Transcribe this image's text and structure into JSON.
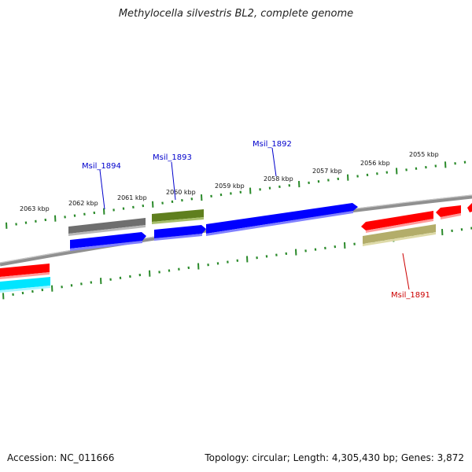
{
  "title": "Methylocella silvestris BL2, complete genome",
  "footer": {
    "accession": "Accession: NC_011666",
    "summary": "Topology: circular; Length: 4,305,430 bp; Genes: 3,872"
  },
  "colors": {
    "ruler_tick": "#2a8a2a",
    "genome_line": "#808080",
    "gene_label_blue": "#0000cc",
    "gene_label_red": "#cc0000",
    "blue_gene": "#0000ff",
    "gray_gene": "#6e6e6e",
    "olive_gene": "#5f7f1e",
    "khaki_gene": "#b3ad6a",
    "red_gene": "#ff0000",
    "cyan_gene": "#00e5ff"
  },
  "ruler_labels": [
    "2063 kbp",
    "2062 kbp",
    "2061 kbp",
    "2060 kbp",
    "2059 kbp",
    "2058 kbp",
    "2057 kbp",
    "2056 kbp",
    "2055 kbp"
  ],
  "gene_labels": [
    {
      "id": "Msil_1894",
      "strand": "forward"
    },
    {
      "id": "Msil_1893",
      "strand": "forward"
    },
    {
      "id": "Msil_1892",
      "strand": "forward"
    },
    {
      "id": "Msil_1891",
      "strand": "reverse"
    }
  ]
}
